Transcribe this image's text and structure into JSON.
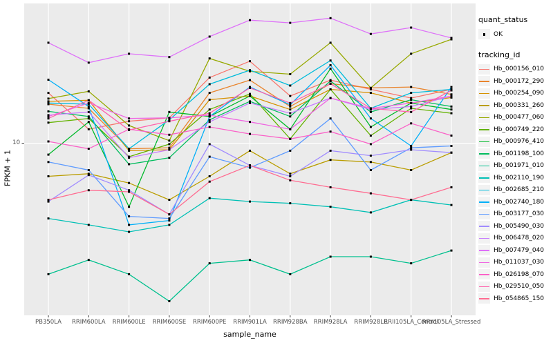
{
  "chart_data": {
    "type": "line",
    "xlabel": "sample_name",
    "ylabel": "FPKM + 1",
    "y_scale": "log10",
    "ylim": [
      1.45,
      48
    ],
    "y_breaks": [
      {
        "value": 10,
        "label": "10"
      }
    ],
    "grid": "major-white-on-gray",
    "legend_position": "right",
    "panel_bg": "#EBEBEB",
    "grid_color": "#FFFFFF",
    "tick_color": "#333333",
    "point_color": "#000000",
    "categories": [
      "PB350LA",
      "RRIM600LA",
      "RRIM600LE",
      "RRIM600SE",
      "RRIM600PE",
      "RRIM901LA",
      "RRIM928BA",
      "RRIM928LA",
      "RRIM928LE",
      "RRII105LA_Control",
      "RRII105LA_Stressed"
    ],
    "series": [
      {
        "name": "Hb_000156_010",
        "color": "#F8766D",
        "values": [
          17.6,
          11.7,
          12.8,
          13.3,
          20.9,
          25.1,
          17.0,
          20.3,
          18.3,
          16.6,
          18.3
        ]
      },
      {
        "name": "Hb_000172_290",
        "color": "#E9842C",
        "values": [
          15.5,
          14.8,
          9.4,
          9.5,
          17.6,
          20.3,
          15.1,
          19.5,
          18.6,
          18.8,
          17.3
        ]
      },
      {
        "name": "Hb_000254_090",
        "color": "#D69100",
        "values": [
          16.0,
          16.2,
          9.2,
          9.3,
          16.3,
          17.0,
          14.6,
          18.3,
          17.6,
          15.7,
          16.7
        ]
      },
      {
        "name": "Hb_000331_260",
        "color": "#BA9D00",
        "values": [
          6.9,
          7.1,
          6.4,
          5.3,
          6.9,
          9.2,
          7.1,
          8.3,
          8.1,
          7.4,
          9.0
        ]
      },
      {
        "name": "Hb_000477_060",
        "color": "#97A900",
        "values": [
          16.5,
          17.9,
          12.2,
          10.3,
          25.9,
          22.4,
          21.7,
          30.9,
          18.6,
          27.3,
          32.1
        ]
      },
      {
        "name": "Hb_000749_220",
        "color": "#63B200",
        "values": [
          12.6,
          13.2,
          8.6,
          9.9,
          14.6,
          17.4,
          10.5,
          18.3,
          10.9,
          14.8,
          14.0
        ]
      },
      {
        "name": "Hb_000976_410",
        "color": "#00B92A",
        "values": [
          8.8,
          12.7,
          4.9,
          14.2,
          13.5,
          17.0,
          11.7,
          23.1,
          12.0,
          15.7,
          14.6
        ]
      },
      {
        "name": "Hb_001198_100",
        "color": "#00BC5D",
        "values": [
          14.3,
          13.5,
          7.9,
          8.5,
          13.0,
          16.0,
          13.5,
          20.1,
          14.2,
          16.3,
          15.1
        ]
      },
      {
        "name": "Hb_001971_010",
        "color": "#00C08E",
        "values": [
          2.3,
          2.7,
          2.3,
          1.7,
          2.6,
          2.7,
          2.3,
          2.8,
          2.8,
          2.6,
          3.0
        ]
      },
      {
        "name": "Hb_002110_190",
        "color": "#00C0B5",
        "values": [
          4.3,
          4.0,
          3.7,
          4.0,
          5.4,
          5.2,
          5.1,
          4.9,
          4.6,
          5.3,
          5.0
        ]
      },
      {
        "name": "Hb_002685_210",
        "color": "#00BBDB",
        "values": [
          15.7,
          15.5,
          9.4,
          13.0,
          19.4,
          22.7,
          19.1,
          25.3,
          14.8,
          17.6,
          18.3
        ]
      },
      {
        "name": "Hb_002740_180",
        "color": "#00AFF8",
        "values": [
          20.4,
          15.1,
          4.0,
          4.2,
          13.5,
          18.8,
          15.4,
          24.0,
          13.2,
          9.7,
          18.8
        ]
      },
      {
        "name": "Hb_003177_030",
        "color": "#5E9BFF",
        "values": [
          8.1,
          7.4,
          4.4,
          4.3,
          8.6,
          7.6,
          9.2,
          13.2,
          7.4,
          9.5,
          9.7
        ]
      },
      {
        "name": "Hb_005490_030",
        "color": "#A08BFF",
        "values": [
          5.2,
          7.0,
          5.9,
          4.5,
          9.9,
          7.8,
          6.9,
          9.2,
          8.7,
          9.3,
          9.0
        ]
      },
      {
        "name": "Hb_006478_020",
        "color": "#C77CFF",
        "values": [
          13.7,
          14.2,
          8.5,
          9.3,
          12.7,
          15.7,
          14.0,
          16.6,
          14.6,
          15.1,
          17.0
        ]
      },
      {
        "name": "Hb_007479_040",
        "color": "#DE71F9",
        "values": [
          30.9,
          24.7,
          27.3,
          26.3,
          33.1,
          39.8,
          38.6,
          40.7,
          34.1,
          36.6,
          32.6
        ]
      },
      {
        "name": "Hb_011037_030",
        "color": "#EF67E2",
        "values": [
          13.5,
          15.7,
          13.2,
          13.3,
          13.7,
          12.7,
          11.7,
          16.6,
          14.8,
          15.7,
          17.0
        ]
      },
      {
        "name": "Hb_026198_070",
        "color": "#FB61C8",
        "values": [
          10.2,
          9.4,
          11.7,
          11.0,
          12.0,
          11.1,
          10.5,
          11.4,
          9.9,
          12.5,
          10.9
        ]
      },
      {
        "name": "Hb_029510_050",
        "color": "#FF62AC",
        "values": [
          13.2,
          16.2,
          11.6,
          12.8,
          14.0,
          18.6,
          15.7,
          19.5,
          14.8,
          14.2,
          18.1
        ]
      },
      {
        "name": "Hb_054865_150",
        "color": "#FF6C91",
        "values": [
          5.3,
          5.9,
          5.8,
          4.5,
          6.5,
          7.8,
          6.6,
          6.1,
          5.7,
          5.3,
          6.1
        ]
      }
    ]
  },
  "legend": {
    "quant_status_title": "quant_status",
    "quant_status_items": [
      {
        "label": "OK"
      }
    ],
    "tracking_id_title": "tracking_id"
  },
  "axes": {
    "x_title": "sample_name",
    "y_title": "FPKM + 1"
  }
}
